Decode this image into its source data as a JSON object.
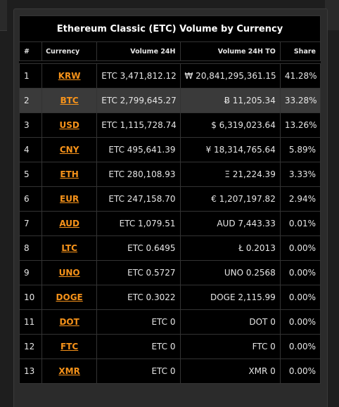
{
  "table": {
    "title": "Ethereum Classic (ETC) Volume by Currency",
    "headers": {
      "rank": "#",
      "currency": "Currency",
      "volume": "Volume 24H",
      "volume_to": "Volume 24H TO",
      "share": "Share"
    },
    "rows": [
      {
        "rank": "1",
        "currency": "KRW",
        "volume": "ETC 3,471,812.12",
        "volume_to": "₩ 20,841,295,361.15",
        "share": "41.28%"
      },
      {
        "rank": "2",
        "currency": "BTC",
        "volume": "ETC 2,799,645.27",
        "volume_to": "Ƀ 11,205.34",
        "share": "33.28%"
      },
      {
        "rank": "3",
        "currency": "USD",
        "volume": "ETC 1,115,728.74",
        "volume_to": "$ 6,319,023.64",
        "share": "13.26%"
      },
      {
        "rank": "4",
        "currency": "CNY",
        "volume": "ETC 495,641.39",
        "volume_to": "¥ 18,314,765.64",
        "share": "5.89%"
      },
      {
        "rank": "5",
        "currency": "ETH",
        "volume": "ETC 280,108.93",
        "volume_to": "Ξ 21,224.39",
        "share": "3.33%"
      },
      {
        "rank": "6",
        "currency": "EUR",
        "volume": "ETC 247,158.70",
        "volume_to": "€ 1,207,197.82",
        "share": "2.94%"
      },
      {
        "rank": "7",
        "currency": "AUD",
        "volume": "ETC 1,079.51",
        "volume_to": "AUD 7,443.33",
        "share": "0.01%"
      },
      {
        "rank": "8",
        "currency": "LTC",
        "volume": "ETC 0.6495",
        "volume_to": "Ł 0.2013",
        "share": "0.00%"
      },
      {
        "rank": "9",
        "currency": "UNO",
        "volume": "ETC 0.5727",
        "volume_to": "UNO 0.2568",
        "share": "0.00%"
      },
      {
        "rank": "10",
        "currency": "DOGE",
        "volume": "ETC 0.3022",
        "volume_to": "DOGE 2,115.99",
        "share": "0.00%"
      },
      {
        "rank": "11",
        "currency": "DOT",
        "volume": "ETC 0",
        "volume_to": "DOT 0",
        "share": "0.00%"
      },
      {
        "rank": "12",
        "currency": "FTC",
        "volume": "ETC 0",
        "volume_to": "FTC 0",
        "share": "0.00%"
      },
      {
        "rank": "13",
        "currency": "XMR",
        "volume": "ETC 0",
        "volume_to": "XMR 0",
        "share": "0.00%"
      }
    ]
  },
  "colors": {
    "link": "#f7931a",
    "highlight_row": "#3a3a3a",
    "table_bg": "#000000",
    "page_bg": "#1e1e1e"
  }
}
